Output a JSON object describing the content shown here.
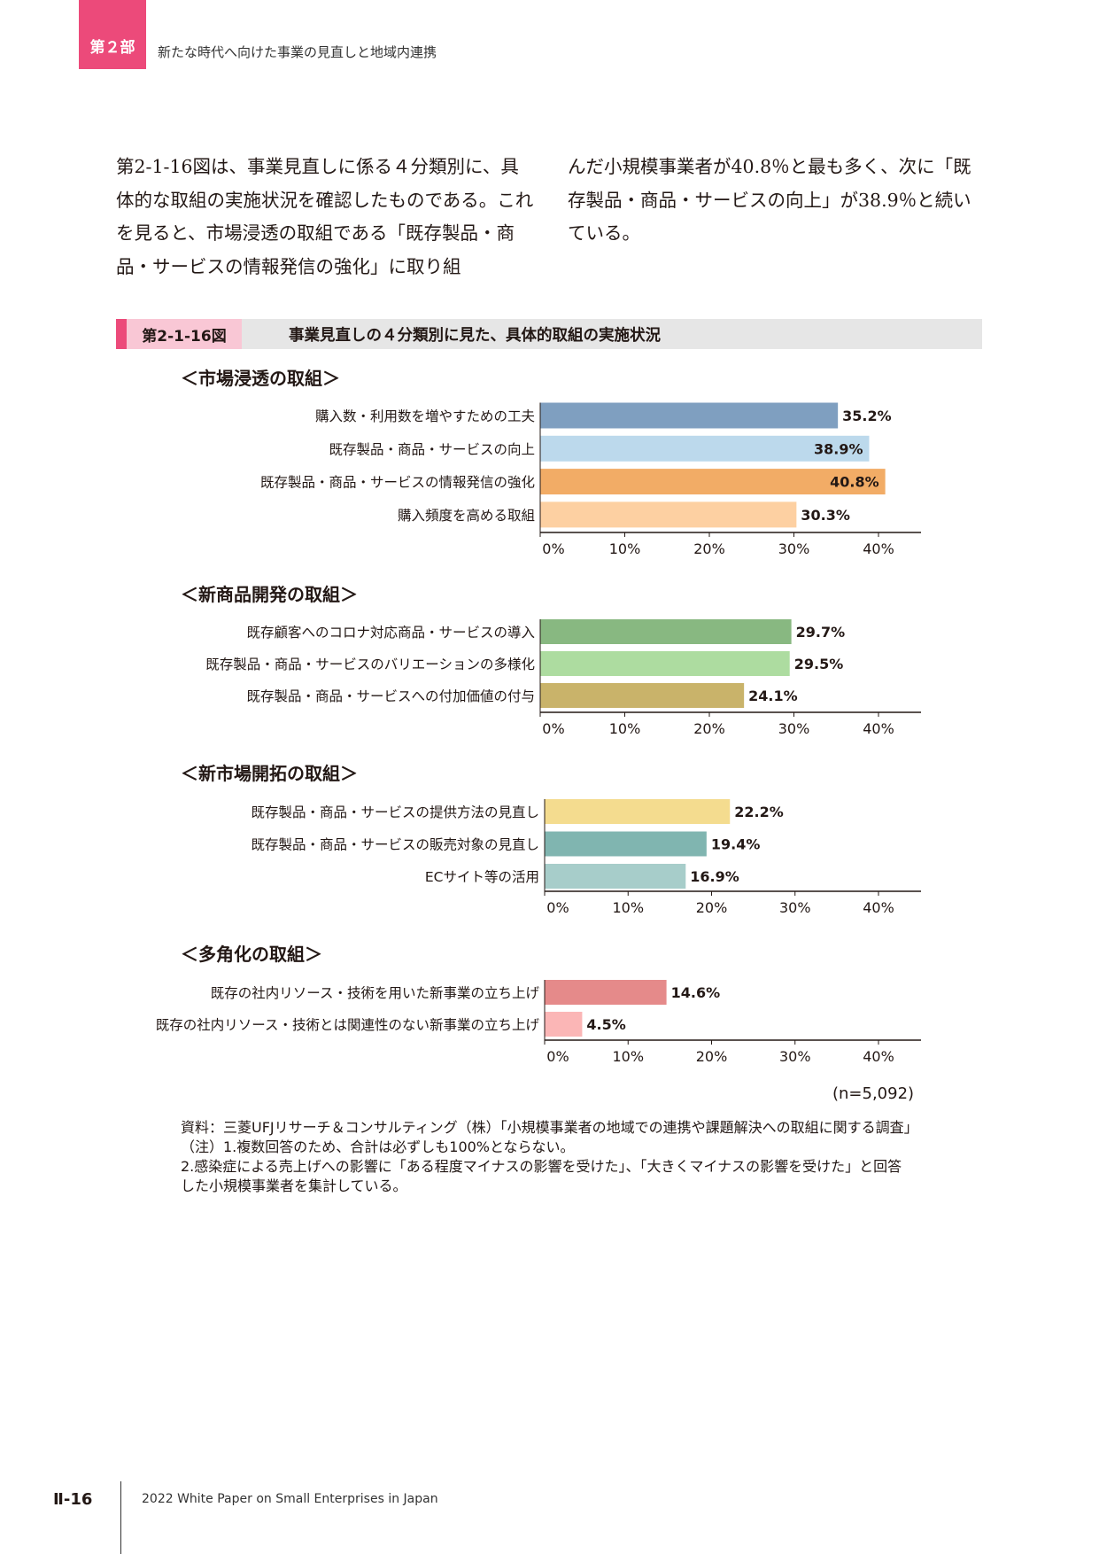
{
  "header": {
    "part_label": "第２部",
    "part_title": "新たな時代へ向けた事業の見直しと地域内連携"
  },
  "body": {
    "left": "第2-1-16図は、事業見直しに係る４分類別に、具体的な取組の実施状況を確認したものである。これを見ると、市場浸透の取組である「既存製品・商品・サービスの情報発信の強化」に取り組",
    "right": "んだ小規模事業者が40.8％と最も多く、次に「既存製品・商品・サービスの向上」が38.9％と続いている。"
  },
  "figure": {
    "number": "第2-1-16図",
    "title": "事業見直しの４分類別に見た、具体的取組の実施状況"
  },
  "chart_data": [
    {
      "type": "bar",
      "title": "＜市場浸透の取組＞",
      "categories": [
        "購入数・利用数を増やすための工夫",
        "既存製品・商品・サービスの向上",
        "既存製品・商品・サービスの情報発信の強化",
        "購入頻度を高める取組"
      ],
      "values": [
        35.2,
        38.9,
        40.8,
        30.3
      ],
      "labels": [
        "35.2%",
        "38.9%",
        "40.8%",
        "30.3%"
      ],
      "colors": [
        "#7f9fc0",
        "#bcd9ec",
        "#f2ac66",
        "#fdd0a2"
      ],
      "ticks": [
        "0%",
        "10%",
        "20%",
        "30%",
        "40%"
      ],
      "xlim": [
        0,
        45
      ]
    },
    {
      "type": "bar",
      "title": "＜新商品開発の取組＞",
      "categories": [
        "既存顧客へのコロナ対応商品・サービスの導入",
        "既存製品・商品・サービスのバリエーションの多様化",
        "既存製品・商品・サービスへの付加価値の付与"
      ],
      "values": [
        29.7,
        29.5,
        24.1
      ],
      "labels": [
        "29.7%",
        "29.5%",
        "24.1%"
      ],
      "colors": [
        "#88b881",
        "#addca0",
        "#c9b36a"
      ],
      "ticks": [
        "0%",
        "10%",
        "20%",
        "30%",
        "40%"
      ],
      "xlim": [
        0,
        45
      ]
    },
    {
      "type": "bar",
      "title": "＜新市場開拓の取組＞",
      "categories": [
        "既存製品・商品・サービスの提供方法の見直し",
        "既存製品・商品・サービスの販売対象の見直し",
        "ECサイト等の活用"
      ],
      "values": [
        22.2,
        19.4,
        16.9
      ],
      "labels": [
        "22.2%",
        "19.4%",
        "16.9%"
      ],
      "colors": [
        "#f4dc8f",
        "#80b5b0",
        "#a7cdca"
      ],
      "ticks": [
        "0%",
        "10%",
        "20%",
        "30%",
        "40%"
      ],
      "xlim": [
        0,
        45
      ]
    },
    {
      "type": "bar",
      "title": "＜多角化の取組＞",
      "categories": [
        "既存の社内リソース・技術を用いた新事業の立ち上げ",
        "既存の社内リソース・技術とは関連性のない新事業の立ち上げ"
      ],
      "values": [
        14.6,
        4.5
      ],
      "labels": [
        "14.6%",
        "4.5%"
      ],
      "colors": [
        "#e58a8a",
        "#fbb6b6"
      ],
      "ticks": [
        "0%",
        "10%",
        "20%",
        "30%",
        "40%"
      ],
      "xlim": [
        0,
        45
      ]
    }
  ],
  "n_note": "(n=5,092)",
  "notes": {
    "source": "資料：三菱UFJリサーチ＆コンサルティング（株）「小規模事業者の地域での連携や課題解決への取組に関する調査」",
    "note1": "（注）1.複数回答のため、合計は必ずしも100%とならない。",
    "note2": "2.感染症による売上げへの影響に「ある程度マイナスの影響を受けた」、「大きくマイナスの影響を受けた」と回答した小規模事業者を集計している。"
  },
  "footer": {
    "page": "Ⅱ-16",
    "book": "2022 White Paper on Small Enterprises in Japan"
  }
}
